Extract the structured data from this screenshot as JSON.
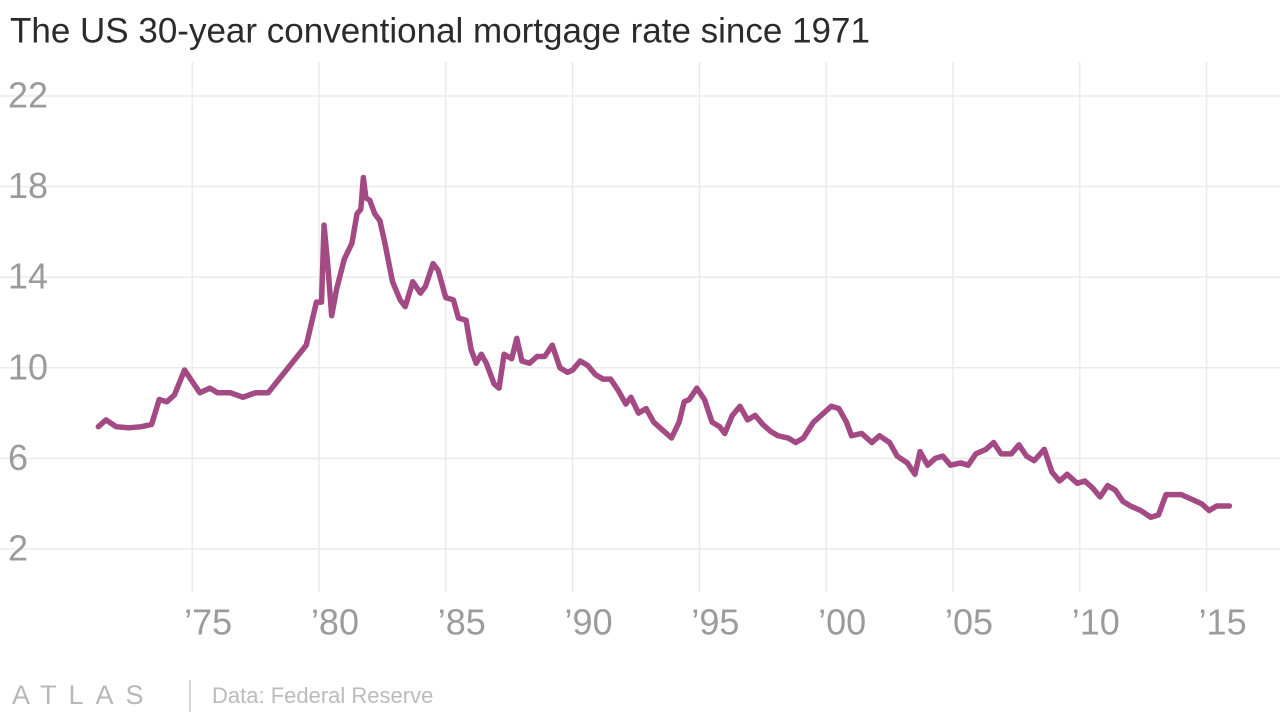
{
  "chart_data": {
    "type": "line",
    "title": "The US 30-year conventional mortgage rate since 1971",
    "brand": "ATLAS",
    "source": "Data: Federal Reserve",
    "x": [
      1971.3,
      1971.6,
      1972,
      1972.5,
      1973,
      1973.4,
      1973.7,
      1974,
      1974.3,
      1974.7,
      1975,
      1975.3,
      1975.7,
      1976,
      1976.5,
      1977,
      1977.5,
      1978,
      1978.5,
      1979,
      1979.5,
      1979.9,
      1980.1,
      1980.2,
      1980.35,
      1980.5,
      1980.7,
      1981,
      1981.3,
      1981.5,
      1981.65,
      1981.75,
      1981.85,
      1982,
      1982.2,
      1982.4,
      1982.6,
      1982.9,
      1983.2,
      1983.4,
      1983.7,
      1984,
      1984.2,
      1984.5,
      1984.7,
      1985,
      1985.3,
      1985.5,
      1985.8,
      1986,
      1986.2,
      1986.4,
      1986.6,
      1986.9,
      1987.1,
      1987.3,
      1987.6,
      1987.8,
      1988,
      1988.3,
      1988.6,
      1988.9,
      1989.2,
      1989.5,
      1989.8,
      1990,
      1990.3,
      1990.6,
      1990.9,
      1991.2,
      1991.5,
      1991.8,
      1992.1,
      1992.3,
      1992.6,
      1992.9,
      1993.2,
      1993.6,
      1993.9,
      1994.2,
      1994.4,
      1994.6,
      1994.9,
      1995.2,
      1995.5,
      1995.8,
      1996,
      1996.3,
      1996.6,
      1996.9,
      1997.2,
      1997.5,
      1997.8,
      1998.1,
      1998.5,
      1998.8,
      1999.1,
      1999.5,
      1999.8,
      2000.2,
      2000.5,
      2000.8,
      2001,
      2001.4,
      2001.8,
      2002.1,
      2002.5,
      2002.8,
      2003.2,
      2003.5,
      2003.7,
      2004,
      2004.3,
      2004.6,
      2004.9,
      2005.3,
      2005.6,
      2005.9,
      2006.3,
      2006.6,
      2006.9,
      2007.3,
      2007.6,
      2007.9,
      2008.2,
      2008.6,
      2008.9,
      2009.2,
      2009.5,
      2009.9,
      2010.2,
      2010.5,
      2010.8,
      2011.1,
      2011.4,
      2011.7,
      2012,
      2012.4,
      2012.8,
      2013.1,
      2013.4,
      2013.7,
      2014,
      2014.4,
      2014.8,
      2015.1,
      2015.4,
      2015.7,
      2015.9
    ],
    "series": [
      {
        "name": "30-year mortgage rate",
        "color": "#a34a84",
        "values": [
          7.4,
          7.7,
          7.4,
          7.35,
          7.4,
          7.5,
          8.6,
          8.5,
          8.8,
          9.9,
          9.4,
          8.9,
          9.1,
          8.9,
          8.9,
          8.7,
          8.9,
          8.9,
          9.6,
          10.3,
          11.0,
          12.9,
          12.9,
          16.3,
          14.5,
          12.3,
          13.5,
          14.8,
          15.5,
          16.8,
          17.0,
          18.4,
          17.5,
          17.4,
          16.8,
          16.5,
          15.5,
          13.8,
          13.0,
          12.7,
          13.8,
          13.3,
          13.6,
          14.6,
          14.3,
          13.1,
          13.0,
          12.2,
          12.1,
          10.8,
          10.2,
          10.6,
          10.2,
          9.3,
          9.1,
          10.6,
          10.4,
          11.3,
          10.3,
          10.2,
          10.5,
          10.5,
          11.0,
          10.0,
          9.8,
          9.9,
          10.3,
          10.1,
          9.7,
          9.5,
          9.5,
          9.0,
          8.4,
          8.7,
          8.0,
          8.2,
          7.6,
          7.2,
          6.9,
          7.6,
          8.5,
          8.6,
          9.1,
          8.6,
          7.6,
          7.4,
          7.1,
          7.9,
          8.3,
          7.7,
          7.9,
          7.5,
          7.2,
          7.0,
          6.9,
          6.7,
          6.9,
          7.6,
          7.9,
          8.3,
          8.2,
          7.6,
          7.0,
          7.1,
          6.7,
          7.0,
          6.7,
          6.1,
          5.8,
          5.3,
          6.3,
          5.7,
          6.0,
          6.1,
          5.7,
          5.8,
          5.7,
          6.2,
          6.4,
          6.7,
          6.2,
          6.2,
          6.6,
          6.1,
          5.9,
          6.4,
          5.4,
          5.0,
          5.3,
          4.9,
          5.0,
          4.7,
          4.3,
          4.8,
          4.6,
          4.1,
          3.9,
          3.7,
          3.4,
          3.5,
          4.4,
          4.4,
          4.4,
          4.2,
          4.0,
          3.7,
          3.9,
          3.9,
          3.9
        ]
      }
    ],
    "xlim": [
      1969,
      2017.5
    ],
    "xticks": [
      {
        "value": 1975,
        "label": "’75"
      },
      {
        "value": 1980,
        "label": "’80"
      },
      {
        "value": 1985,
        "label": "’85"
      },
      {
        "value": 1990,
        "label": "’90"
      },
      {
        "value": 1995,
        "label": "’95"
      },
      {
        "value": 2000,
        "label": "’00"
      },
      {
        "value": 2005,
        "label": "’05"
      },
      {
        "value": 2010,
        "label": "’10"
      },
      {
        "value": 2015,
        "label": "’15"
      }
    ],
    "ylim": [
      0,
      23
    ],
    "yticks": [
      2,
      6,
      10,
      14,
      18,
      22
    ],
    "grid": true
  }
}
